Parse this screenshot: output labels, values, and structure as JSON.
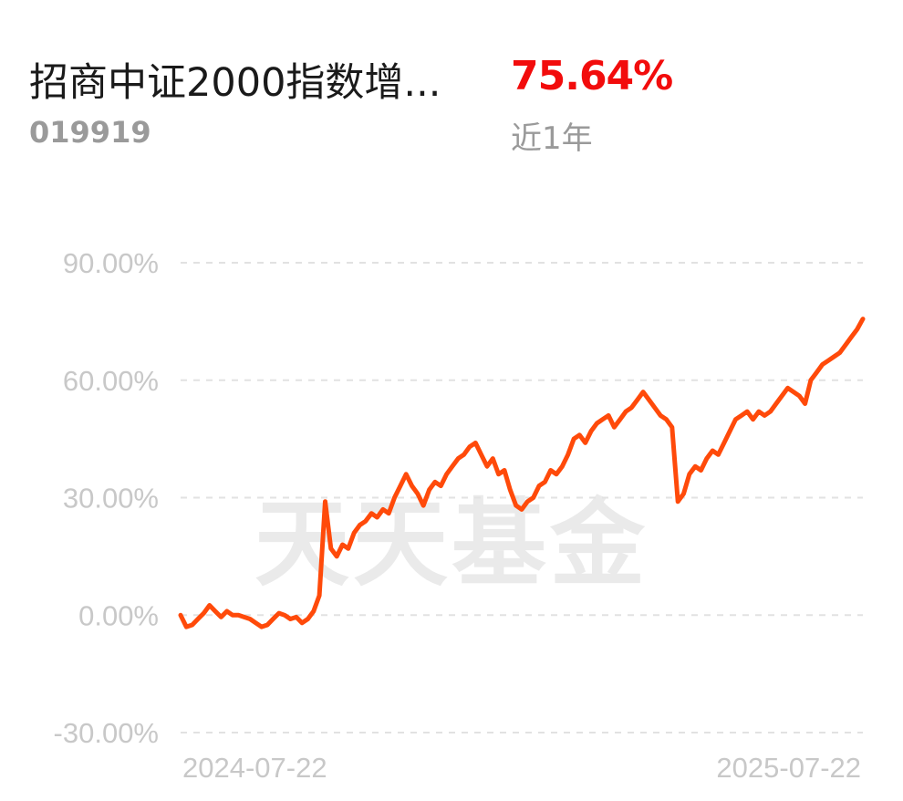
{
  "fund": {
    "name": "招商中证2000指数增...",
    "code": "019919",
    "return_value": "75.64%",
    "return_period": "近1年"
  },
  "watermark": "天天基金",
  "colors": {
    "line": "#ff4a0a",
    "return_positive": "#f20c0c",
    "grid": "#e2e2e2",
    "axis_text": "#c8c8c8"
  },
  "chart_data": {
    "type": "line",
    "x_start_label": "2024-07-22",
    "x_end_label": "2025-07-22",
    "ylim": [
      -30,
      90
    ],
    "yticks": [
      90,
      60,
      30,
      0,
      -30
    ],
    "ytick_labels": [
      "90.00%",
      "60.00%",
      "30.00%",
      "0.00%",
      "-30.00%"
    ],
    "grid": "horizontal-dashed",
    "series": [
      {
        "values": [
          0.0,
          -3.0,
          -2.5,
          -1.0,
          0.5,
          2.5,
          1.0,
          -0.5,
          1.0,
          0.0,
          0.0,
          -0.5,
          -1.0,
          -2.0,
          -3.0,
          -2.5,
          -1.0,
          0.5,
          0.0,
          -1.0,
          -0.5,
          -2.0,
          -1.0,
          1.0,
          5.0,
          29.0,
          17.0,
          15.0,
          18.0,
          17.0,
          21.0,
          23.0,
          24.0,
          26.0,
          25.0,
          27.0,
          26.0,
          30.0,
          33.0,
          36.0,
          33.0,
          31.0,
          28.0,
          32.0,
          34.0,
          33.0,
          36.0,
          38.0,
          40.0,
          41.0,
          43.0,
          44.0,
          41.0,
          38.0,
          40.0,
          36.0,
          37.0,
          32.0,
          28.0,
          27.0,
          29.0,
          30.0,
          33.0,
          34.0,
          37.0,
          36.0,
          38.0,
          41.0,
          45.0,
          46.0,
          44.0,
          47.0,
          49.0,
          50.0,
          51.0,
          48.0,
          50.0,
          52.0,
          53.0,
          55.0,
          57.0,
          55.0,
          53.0,
          51.0,
          50.0,
          48.0,
          29.0,
          31.0,
          36.0,
          38.0,
          37.0,
          40.0,
          42.0,
          41.0,
          44.0,
          47.0,
          50.0,
          51.0,
          52.0,
          50.0,
          52.0,
          51.0,
          52.0,
          54.0,
          56.0,
          58.0,
          57.0,
          56.0,
          54.0,
          60.0,
          62.0,
          64.0,
          65.0,
          66.0,
          67.0,
          69.0,
          71.0,
          73.0,
          75.64
        ]
      }
    ]
  }
}
